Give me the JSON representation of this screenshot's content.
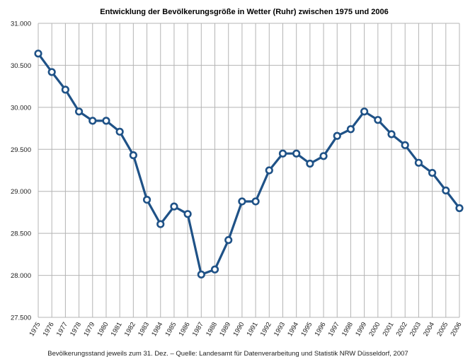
{
  "chart_data": {
    "type": "line",
    "title": "Entwicklung der Bevölkerungsgröße in Wetter (Ruhr) zwischen 1975 und 2006",
    "caption": "Bevölkerungsstand jeweils zum 31. Dez. – Quelle: Landesamt für Datenverarbeitung und Statistik NRW  Düsseldorf, 2007",
    "xlabel": "",
    "ylabel": "",
    "ylim": [
      27500,
      31000
    ],
    "ytick_values": [
      27500,
      28000,
      28500,
      29000,
      29500,
      30000,
      30500,
      31000
    ],
    "ytick_labels": [
      "27.500",
      "28.000",
      "28.500",
      "29.000",
      "29.500",
      "30.000",
      "30.500",
      "31.000"
    ],
    "categories": [
      "1975",
      "1976",
      "1977",
      "1978",
      "1979",
      "1980",
      "1981",
      "1982",
      "1983",
      "1984",
      "1985",
      "1986",
      "1987",
      "1988",
      "1989",
      "1990",
      "1991",
      "1992",
      "1993",
      "1994",
      "1995",
      "1996",
      "1997",
      "1998",
      "1999",
      "2000",
      "2001",
      "2002",
      "2003",
      "2004",
      "2005",
      "2006"
    ],
    "series": [
      {
        "values": [
          30640,
          30420,
          30210,
          29950,
          29840,
          29840,
          29710,
          29430,
          28900,
          28610,
          28820,
          28730,
          28010,
          28070,
          28420,
          28880,
          28880,
          29250,
          29450,
          29450,
          29330,
          29420,
          29660,
          29740,
          29950,
          29850,
          29680,
          29550,
          29340,
          29220,
          29010,
          28800
        ]
      }
    ],
    "grid": true,
    "legend": "none",
    "line_color": "#1f5287",
    "marker_fill": "#ffffff",
    "grid_color": "#b4b4b4"
  }
}
